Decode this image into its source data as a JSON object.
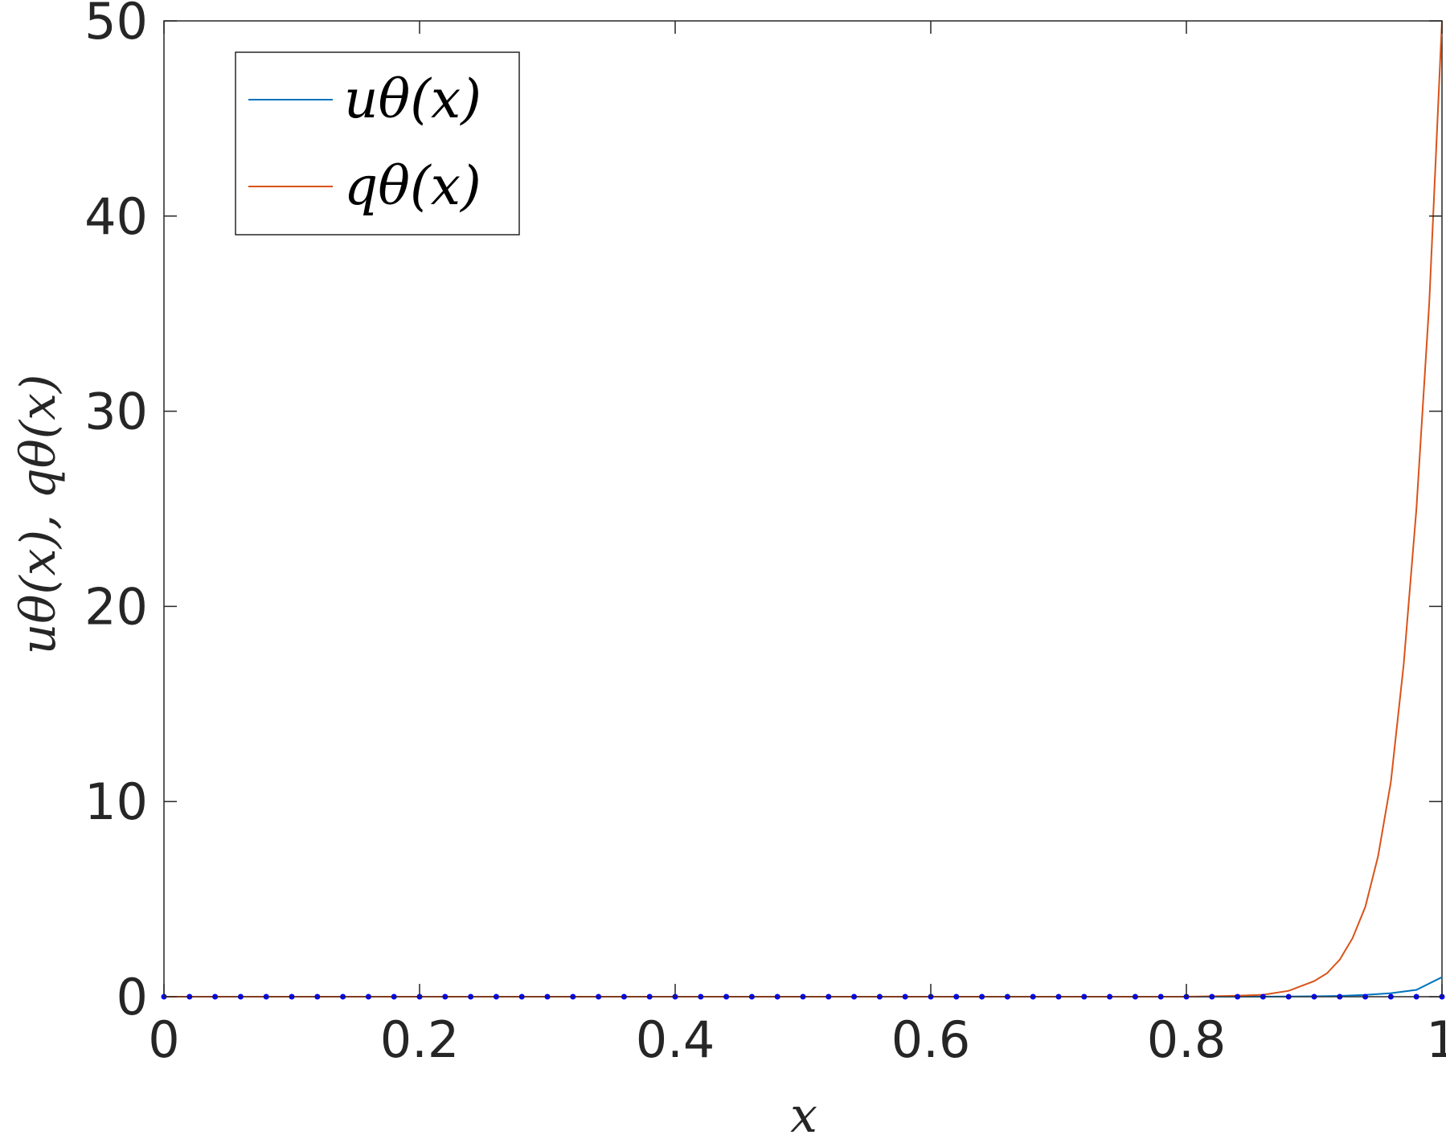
{
  "chart_data": {
    "type": "line",
    "xlabel": "x",
    "ylabel": "uθ(x), qθ(x)",
    "xlim": [
      0,
      1
    ],
    "ylim": [
      0,
      50
    ],
    "xticks": [
      0,
      0.2,
      0.4,
      0.6,
      0.8,
      1
    ],
    "yticks": [
      0,
      10,
      20,
      30,
      40,
      50
    ],
    "xtick_labels": [
      "0",
      "0.2",
      "0.4",
      "0.6",
      "0.8",
      "1"
    ],
    "ytick_labels": [
      "0",
      "10",
      "20",
      "30",
      "40",
      "50"
    ],
    "grid": false,
    "legend_position": "top-left",
    "series": [
      {
        "name": "uθ(x)",
        "color": "#0072BD",
        "x": [
          0,
          0.8,
          0.84,
          0.86,
          0.88,
          0.9,
          0.92,
          0.94,
          0.96,
          0.98,
          1.0
        ],
        "y": [
          0,
          0,
          0.002,
          0.005,
          0.01,
          0.02,
          0.04,
          0.09,
          0.18,
          0.35,
          1.0
        ]
      },
      {
        "name": "qθ(x)",
        "color": "#D95319",
        "x": [
          0,
          0.8,
          0.84,
          0.86,
          0.88,
          0.9,
          0.91,
          0.92,
          0.93,
          0.94,
          0.95,
          0.96,
          0.97,
          0.98,
          0.99,
          1.0
        ],
        "y": [
          0,
          0,
          0.05,
          0.1,
          0.3,
          0.8,
          1.2,
          1.9,
          3.0,
          4.6,
          7.2,
          11.0,
          17.0,
          25.0,
          35.5,
          50.0
        ]
      },
      {
        "name": "",
        "color": "#0000FF",
        "marker": "dot",
        "x": [
          0,
          0.02,
          0.04,
          0.06,
          0.08,
          0.1,
          0.12,
          0.14,
          0.16,
          0.18,
          0.2,
          0.22,
          0.24,
          0.26,
          0.28,
          0.3,
          0.32,
          0.34,
          0.36,
          0.38,
          0.4,
          0.42,
          0.44,
          0.46,
          0.48,
          0.5,
          0.52,
          0.54,
          0.56,
          0.58,
          0.6,
          0.62,
          0.64,
          0.66,
          0.68,
          0.7,
          0.72,
          0.74,
          0.76,
          0.78,
          0.8,
          0.82,
          0.84,
          0.86,
          0.88,
          0.9,
          0.92,
          0.94,
          0.96,
          0.98,
          1.0
        ],
        "y": [
          0,
          0,
          0,
          0,
          0,
          0,
          0,
          0,
          0,
          0,
          0,
          0,
          0,
          0,
          0,
          0,
          0,
          0,
          0,
          0,
          0,
          0,
          0,
          0,
          0,
          0,
          0,
          0,
          0,
          0,
          0,
          0,
          0,
          0,
          0,
          0,
          0,
          0,
          0,
          0,
          0,
          0,
          0,
          0,
          0,
          0,
          0,
          0,
          0,
          0,
          0
        ]
      }
    ]
  }
}
